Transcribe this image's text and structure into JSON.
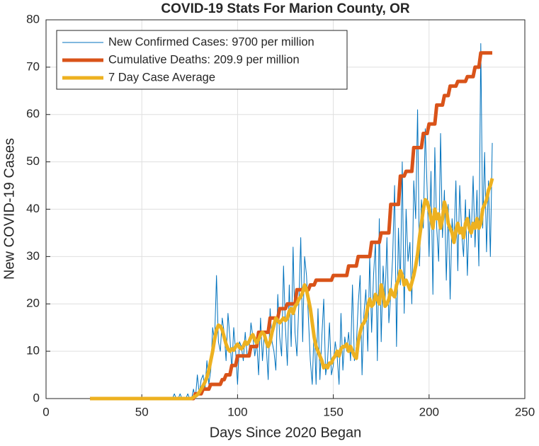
{
  "chart_data": {
    "type": "line",
    "title": "COVID-19 Stats For Marion County, OR",
    "xlabel": "Days Since 2020 Began",
    "ylabel": "New COVID-19 Cases",
    "x": [
      23,
      24,
      25,
      26,
      27,
      28,
      29,
      30,
      31,
      32,
      33,
      34,
      35,
      36,
      37,
      38,
      39,
      40,
      41,
      42,
      43,
      44,
      45,
      46,
      47,
      48,
      49,
      50,
      51,
      52,
      53,
      54,
      55,
      56,
      57,
      58,
      59,
      60,
      61,
      62,
      63,
      64,
      65,
      66,
      67,
      68,
      69,
      70,
      71,
      72,
      73,
      74,
      75,
      76,
      77,
      78,
      79,
      80,
      81,
      82,
      83,
      84,
      85,
      86,
      87,
      88,
      89,
      90,
      91,
      92,
      93,
      94,
      95,
      96,
      97,
      98,
      99,
      100,
      101,
      102,
      103,
      104,
      105,
      106,
      107,
      108,
      109,
      110,
      111,
      112,
      113,
      114,
      115,
      116,
      117,
      118,
      119,
      120,
      121,
      122,
      123,
      124,
      125,
      126,
      127,
      128,
      129,
      130,
      131,
      132,
      133,
      134,
      135,
      136,
      137,
      138,
      139,
      140,
      141,
      142,
      143,
      144,
      145,
      146,
      147,
      148,
      149,
      150,
      151,
      152,
      153,
      154,
      155,
      156,
      157,
      158,
      159,
      160,
      161,
      162,
      163,
      164,
      165,
      166,
      167,
      168,
      169,
      170,
      171,
      172,
      173,
      174,
      175,
      176,
      177,
      178,
      179,
      180,
      181,
      182,
      183,
      184,
      185,
      186,
      187,
      188,
      189,
      190,
      191,
      192,
      193,
      194,
      195,
      196,
      197,
      198,
      199,
      200,
      201,
      202,
      203,
      204,
      205,
      206,
      207,
      208,
      209,
      210,
      211,
      212,
      213,
      214,
      215,
      216,
      217,
      218,
      219,
      220,
      221,
      222,
      223,
      224,
      225,
      226,
      227,
      228,
      229,
      230,
      231,
      232,
      233
    ],
    "series": [
      {
        "name": "New Confirmed Cases: 9700 per million",
        "color": "#0072bd",
        "width": 1,
        "values": [
          0,
          0,
          0,
          0,
          0,
          0,
          0,
          0,
          0,
          0,
          0,
          0,
          0,
          0,
          0,
          0,
          0,
          0,
          0,
          0,
          0,
          0,
          0,
          0,
          0,
          0,
          0,
          0,
          0,
          0,
          0,
          0,
          0,
          0,
          0,
          0,
          0,
          0,
          0,
          0,
          0,
          0,
          0,
          0,
          1,
          0,
          0,
          1,
          0,
          0,
          0,
          1,
          0,
          0,
          2,
          0,
          5,
          1,
          4,
          5,
          2,
          8,
          3,
          6,
          15,
          12,
          26,
          12,
          10,
          17,
          14,
          8,
          18,
          13,
          6,
          15,
          10,
          3,
          12,
          11,
          8,
          14,
          9,
          10,
          16,
          13,
          9,
          12,
          5,
          17,
          8,
          14,
          11,
          4,
          19,
          12,
          10,
          6,
          22,
          13,
          9,
          28,
          15,
          7,
          24,
          11,
          32,
          14,
          9,
          20,
          34,
          12,
          30,
          26,
          17,
          8,
          3,
          15,
          3,
          19,
          4,
          13,
          21,
          5,
          8,
          16,
          5,
          7,
          12,
          9,
          3,
          18,
          6,
          13,
          10,
          14,
          8,
          24,
          8,
          11,
          20,
          26,
          5,
          18,
          23,
          10,
          30,
          14,
          26,
          33,
          8,
          38,
          12,
          28,
          20,
          34,
          16,
          22,
          30,
          45,
          11,
          36,
          24,
          50,
          18,
          40,
          29,
          33,
          20,
          46,
          38,
          61,
          28,
          42,
          36,
          57,
          44,
          30,
          48,
          22,
          53,
          36,
          29,
          56,
          34,
          44,
          25,
          41,
          21,
          38,
          33,
          46,
          27,
          45,
          35,
          30,
          42,
          26,
          40,
          34,
          47,
          32,
          44,
          28,
          75,
          36,
          52,
          31,
          46,
          30,
          54
        ]
      },
      {
        "name": "Cumulative Deaths: 209.9 per million",
        "color": "#d95319",
        "width": 5,
        "values": [
          0,
          0,
          0,
          0,
          0,
          0,
          0,
          0,
          0,
          0,
          0,
          0,
          0,
          0,
          0,
          0,
          0,
          0,
          0,
          0,
          0,
          0,
          0,
          0,
          0,
          0,
          0,
          0,
          0,
          0,
          0,
          0,
          0,
          0,
          0,
          0,
          0,
          0,
          0,
          0,
          0,
          0,
          0,
          0,
          0,
          0,
          0,
          0,
          0,
          0,
          0,
          0,
          0,
          0,
          0,
          1,
          1,
          1,
          1,
          2,
          2,
          2,
          2,
          3,
          3,
          3,
          3,
          3,
          3,
          4,
          4,
          5,
          5,
          5,
          7,
          7,
          7,
          9,
          9,
          9,
          9,
          9,
          9,
          9,
          11,
          11,
          11,
          11,
          14,
          14,
          14,
          14,
          14,
          14,
          17,
          17,
          17,
          17,
          17,
          19,
          19,
          19,
          19,
          20,
          20,
          20,
          20,
          20,
          23,
          23,
          23,
          23,
          23,
          23,
          23,
          24,
          24,
          24,
          25,
          25,
          25,
          25,
          25,
          25,
          25,
          25,
          25,
          26,
          26,
          26,
          26,
          26,
          26,
          26,
          26,
          28,
          28,
          28,
          28,
          28,
          30,
          30,
          30,
          30,
          30,
          30,
          30,
          33,
          33,
          33,
          33,
          33,
          35,
          35,
          35,
          35,
          35,
          41,
          41,
          41,
          41,
          41,
          47,
          47,
          47,
          48,
          48,
          48,
          48,
          53,
          53,
          53,
          53,
          53,
          56,
          56,
          56,
          58,
          58,
          58,
          58,
          62,
          62,
          62,
          62,
          64,
          64,
          64,
          66,
          66,
          66,
          66,
          67,
          67,
          67,
          67,
          67,
          68,
          68,
          68,
          68,
          70,
          70,
          70,
          73,
          73,
          73,
          73,
          73,
          73,
          73
        ]
      },
      {
        "name": "7 Day Case Average",
        "color": "#edb120",
        "width": 5,
        "values": [
          0,
          0,
          0,
          0,
          0,
          0,
          0,
          0,
          0,
          0,
          0,
          0,
          0,
          0,
          0,
          0,
          0,
          0,
          0,
          0,
          0,
          0,
          0,
          0,
          0,
          0,
          0,
          0,
          0,
          0,
          0,
          0,
          0,
          0,
          0,
          0,
          0,
          0,
          0,
          0,
          0,
          0,
          0,
          0,
          0,
          0,
          0,
          0,
          0,
          0,
          0,
          0,
          0,
          0,
          0.3,
          0.5,
          0.8,
          1.3,
          2,
          2.7,
          3.5,
          4.5,
          6,
          8,
          10,
          12.5,
          14.5,
          15.5,
          15.3,
          14.5,
          13,
          11.5,
          10.5,
          10,
          10.5,
          10.2,
          11,
          11.5,
          10.8,
          10.5,
          11,
          12,
          11.5,
          12,
          13,
          13.5,
          12.5,
          11.8,
          12.5,
          13.5,
          14,
          13.5,
          12,
          11,
          12,
          14,
          15.5,
          17,
          16.5,
          16,
          16.5,
          17,
          16.5,
          17,
          18.5,
          19,
          18,
          19.5,
          20,
          21,
          21.5,
          22.5,
          24,
          23,
          21,
          19,
          16,
          13,
          11,
          10,
          9,
          8,
          6.5,
          7,
          6.5,
          7.5,
          7.5,
          8.5,
          9,
          10,
          9,
          10.5,
          11,
          11,
          11.5,
          10,
          11,
          10,
          9,
          8.5,
          12,
          14,
          15.5,
          16,
          17,
          19.5,
          21,
          19.5,
          20,
          22,
          21,
          20,
          24,
          22,
          19.5,
          20,
          21,
          23,
          22,
          21.5,
          24,
          25,
          27,
          26,
          24,
          25,
          24,
          23,
          24.5,
          26,
          28,
          30.5,
          34,
          37,
          40,
          42,
          41.5,
          40,
          38,
          36,
          40,
          38,
          39,
          36,
          38,
          41.5,
          40,
          37,
          36,
          35,
          33,
          35.5,
          37,
          35,
          36,
          34,
          37,
          38,
          36,
          35,
          37,
          36,
          38,
          36,
          37,
          40,
          41,
          42,
          44,
          45,
          46.5
        ]
      }
    ],
    "xlim": [
      0,
      250
    ],
    "xticks": [
      0,
      50,
      100,
      150,
      200,
      250
    ],
    "ylim": [
      0,
      80
    ],
    "yticks": [
      0,
      10,
      20,
      30,
      40,
      50,
      60,
      70,
      80
    ],
    "grid": true,
    "legend": "northwest"
  }
}
